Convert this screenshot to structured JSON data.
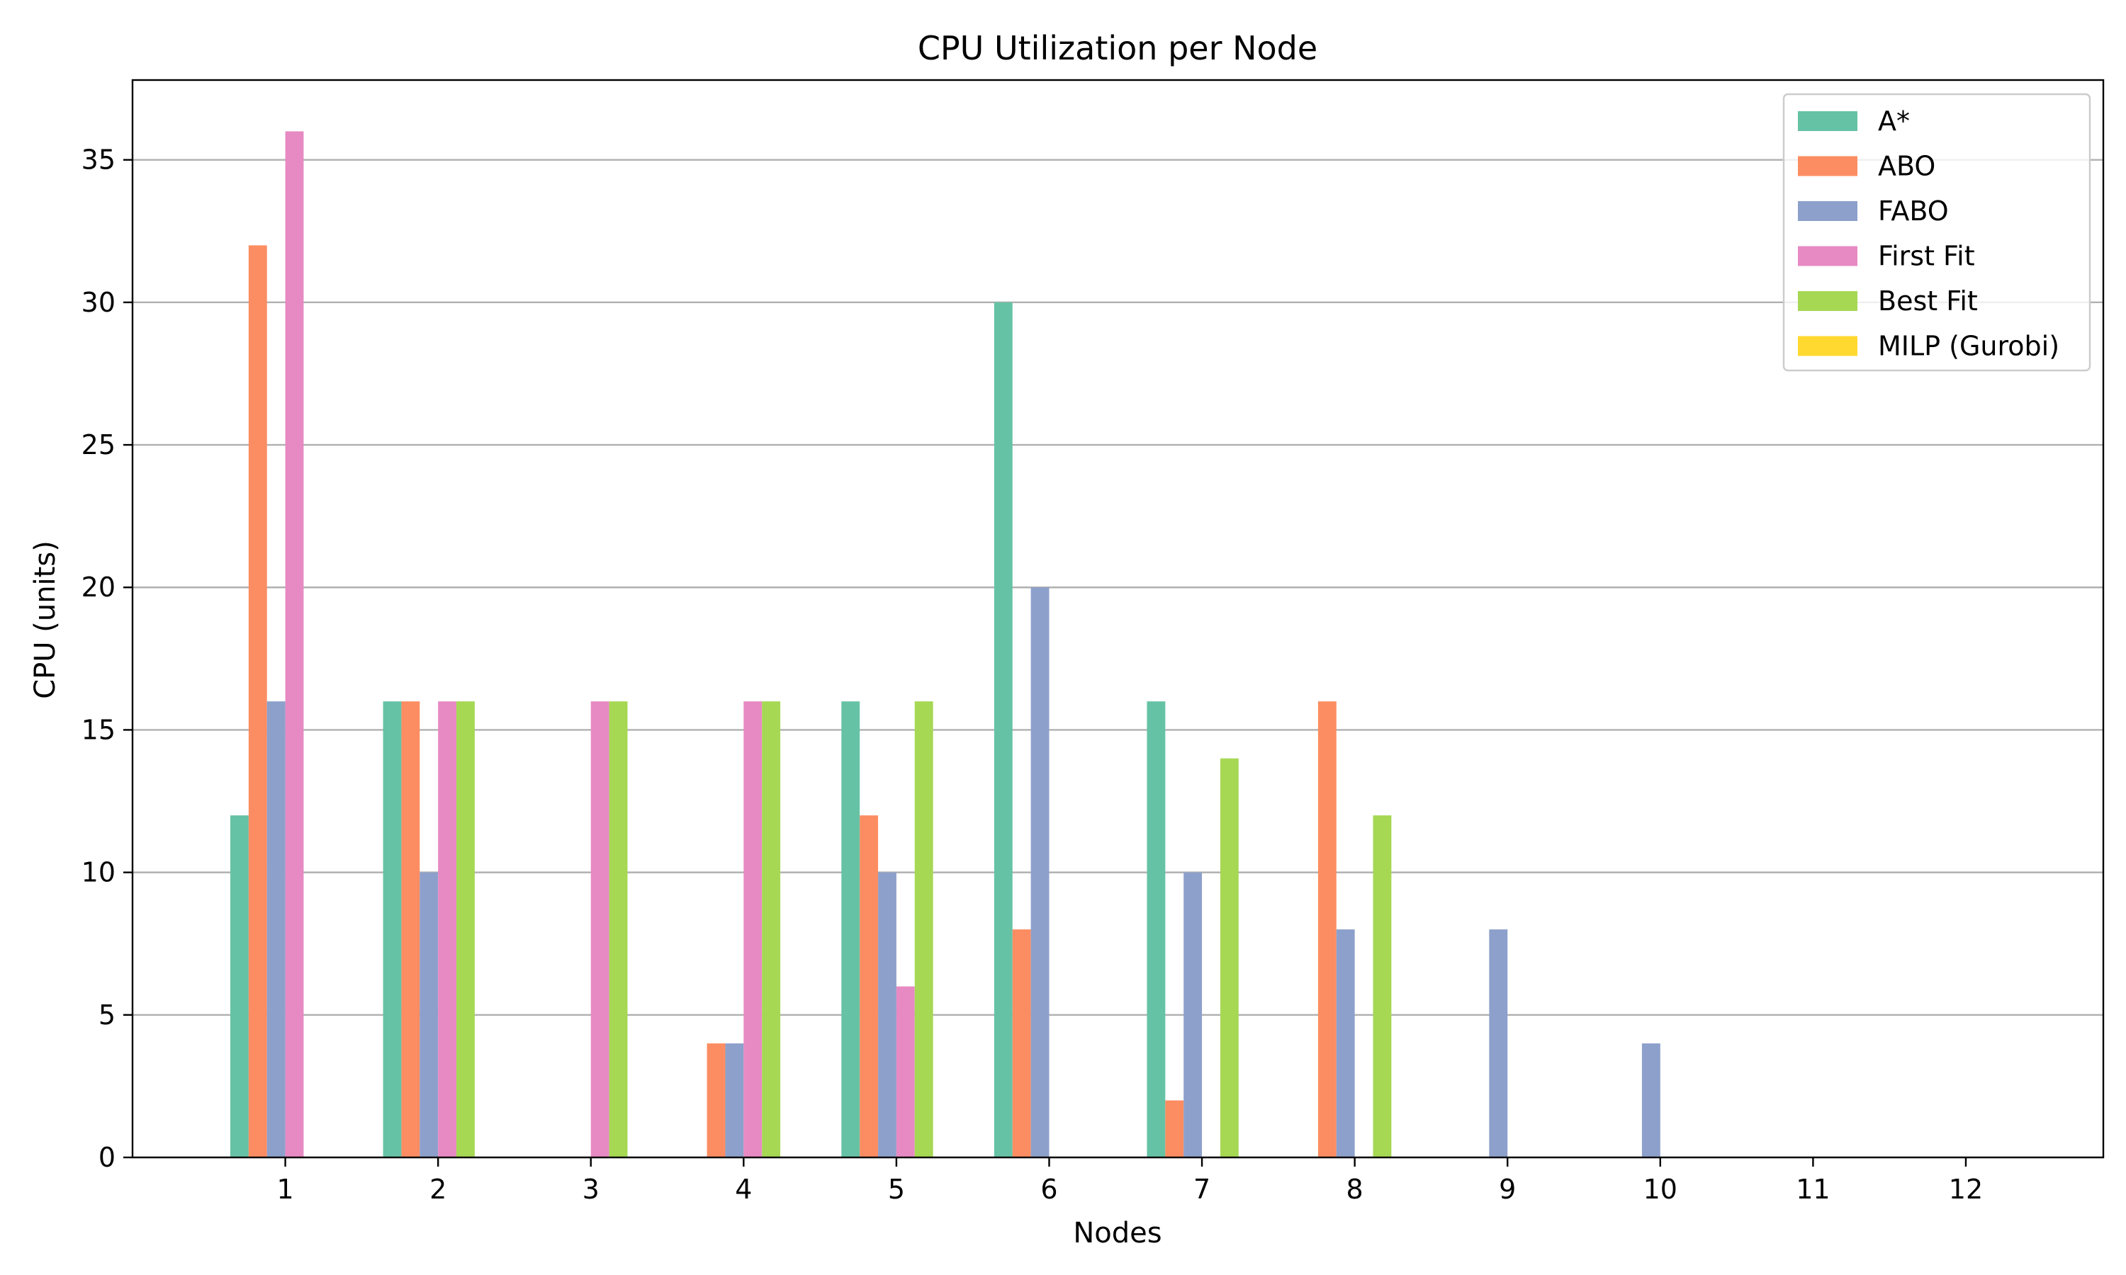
{
  "chart_data": {
    "type": "bar",
    "title": "CPU Utilization per Node",
    "xlabel": "Nodes",
    "ylabel": "CPU (units)",
    "categories": [
      "1",
      "2",
      "3",
      "4",
      "5",
      "6",
      "7",
      "8",
      "9",
      "10",
      "11",
      "12"
    ],
    "ylim": [
      0,
      37.8
    ],
    "yticks": [
      0,
      5,
      10,
      15,
      20,
      25,
      30,
      35
    ],
    "grid": "y",
    "legend_position": "top-right",
    "series": [
      {
        "name": "A*",
        "color": "#66c2a5",
        "values": [
          12,
          16,
          0,
          0,
          16,
          30,
          16,
          0,
          0,
          0,
          0,
          0
        ]
      },
      {
        "name": "ABO",
        "color": "#fc8d62",
        "values": [
          32,
          16,
          0,
          4,
          12,
          8,
          2,
          16,
          0,
          0,
          0,
          0
        ]
      },
      {
        "name": "FABO",
        "color": "#8da0cb",
        "values": [
          16,
          10,
          0,
          4,
          10,
          20,
          10,
          8,
          8,
          4,
          0,
          0
        ]
      },
      {
        "name": "First Fit",
        "color": "#e78ac3",
        "values": [
          36,
          16,
          16,
          16,
          6,
          0,
          0,
          0,
          0,
          0,
          0,
          0
        ]
      },
      {
        "name": "Best Fit",
        "color": "#a6d854",
        "values": [
          0,
          16,
          16,
          16,
          16,
          0,
          14,
          12,
          0,
          0,
          0,
          0
        ]
      },
      {
        "name": "MILP (Gurobi)",
        "color": "#ffd92f",
        "values": [
          0,
          0,
          0,
          0,
          0,
          0,
          0,
          0,
          0,
          0,
          0,
          0
        ]
      }
    ]
  }
}
